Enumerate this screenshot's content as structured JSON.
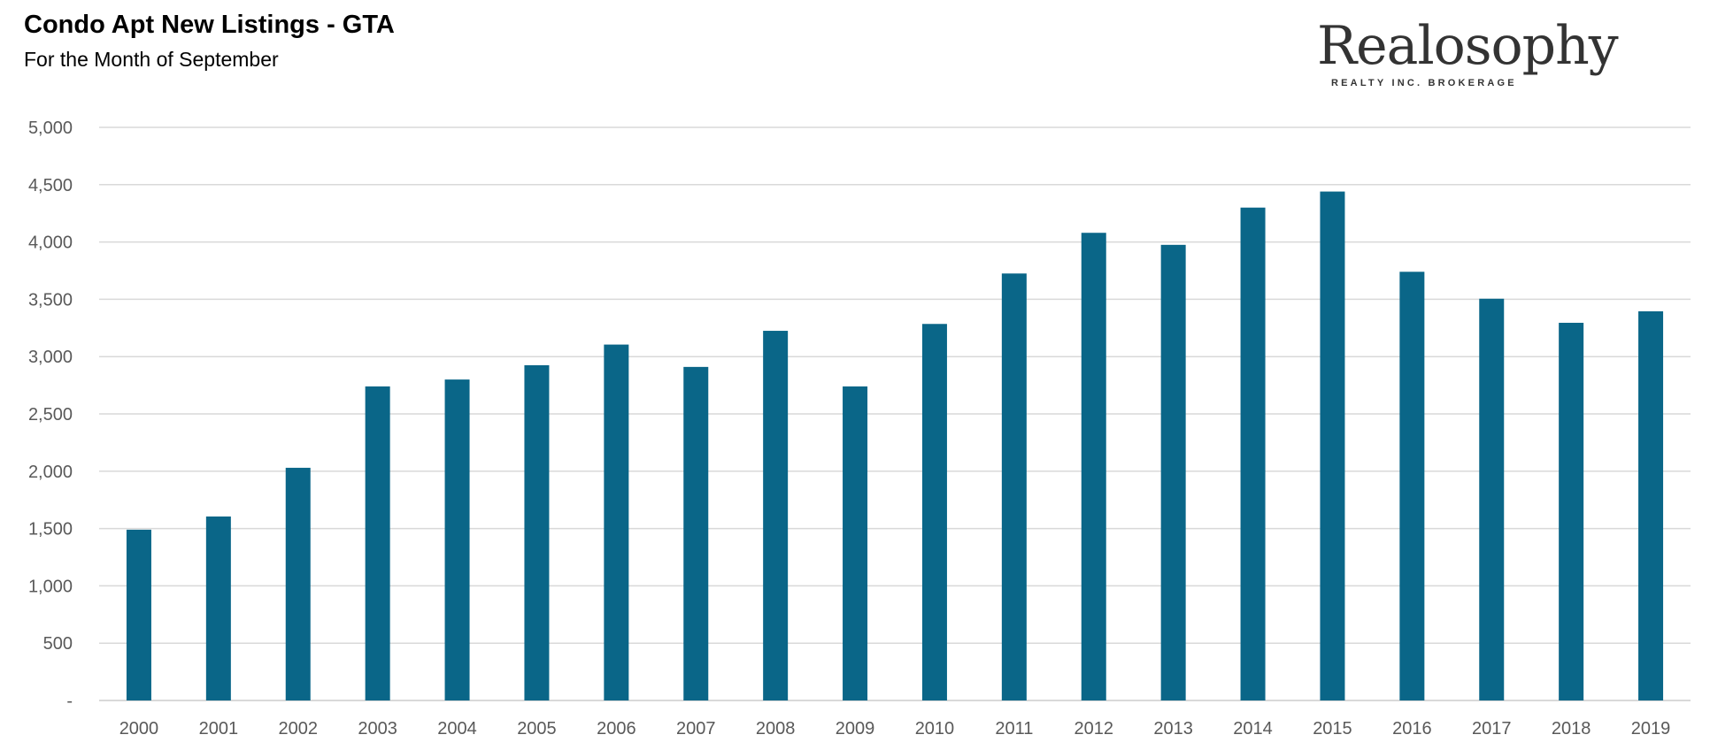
{
  "chart_data": {
    "type": "bar",
    "title": "Condo Apt New Listings - GTA",
    "subtitle": "For the Month of September",
    "xlabel": "",
    "ylabel": "",
    "categories": [
      "2000",
      "2001",
      "2002",
      "2003",
      "2004",
      "2005",
      "2006",
      "2007",
      "2008",
      "2009",
      "2010",
      "2011",
      "2012",
      "2013",
      "2014",
      "2015",
      "2016",
      "2017",
      "2018",
      "2019"
    ],
    "values": [
      1490,
      1605,
      2030,
      2740,
      2800,
      2925,
      3105,
      2910,
      3225,
      2740,
      3285,
      3725,
      4080,
      3975,
      4300,
      4440,
      3740,
      3505,
      3295,
      3395
    ],
    "ylim": [
      0,
      5000
    ],
    "y_ticks": [
      {
        "value": 0,
        "label": "-"
      },
      {
        "value": 500,
        "label": "500"
      },
      {
        "value": 1000,
        "label": "1,000"
      },
      {
        "value": 1500,
        "label": "1,500"
      },
      {
        "value": 2000,
        "label": "2,000"
      },
      {
        "value": 2500,
        "label": "2,500"
      },
      {
        "value": 3000,
        "label": "3,000"
      },
      {
        "value": 3500,
        "label": "3,500"
      },
      {
        "value": 4000,
        "label": "4,000"
      },
      {
        "value": 4500,
        "label": "4,500"
      },
      {
        "value": 5000,
        "label": "5,000"
      }
    ],
    "grid": true,
    "legend": "none",
    "bar_color": "#0a6688",
    "grid_color": "#d9d9d9"
  },
  "logo": {
    "name": "Realosophy",
    "tagline": "REALTY INC. BROKERAGE"
  }
}
